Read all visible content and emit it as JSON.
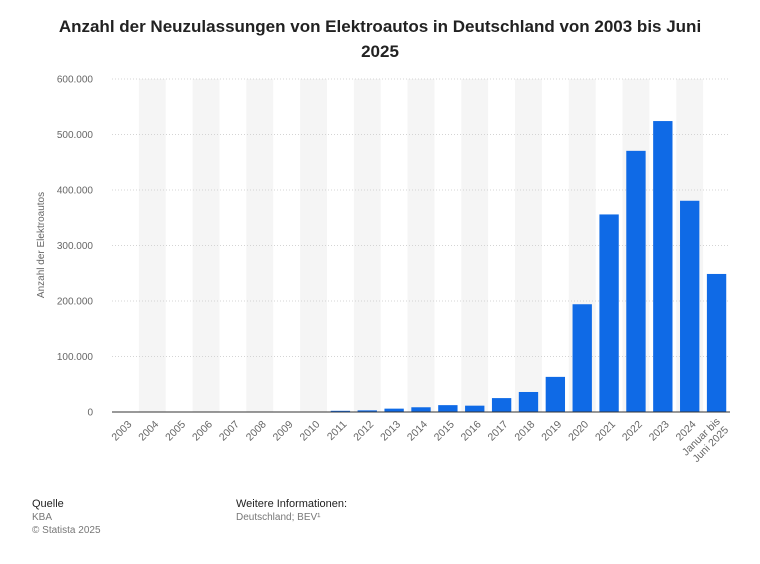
{
  "chart_data": {
    "type": "bar",
    "title": "Anzahl der Neuzulassungen von Elektroautos in Deutschland von 2003 bis Juni 2025",
    "ylabel": "Anzahl der Elektroautos",
    "xlabel": "",
    "categories": [
      "2003",
      "2004",
      "2005",
      "2006",
      "2007",
      "2008",
      "2009",
      "2010",
      "2011",
      "2012",
      "2013",
      "2014",
      "2015",
      "2016",
      "2017",
      "2018",
      "2019",
      "2020",
      "2021",
      "2022",
      "2023",
      "2024",
      "Januar bis Juni 2025"
    ],
    "values": [
      0,
      0,
      0,
      0,
      0,
      0,
      0,
      541,
      2154,
      2956,
      6051,
      8522,
      12363,
      11410,
      25056,
      36062,
      63281,
      194163,
      355961,
      470559,
      524219,
      380609,
      248726
    ],
    "ylim": [
      0,
      600000
    ],
    "yticks": [
      0,
      100000,
      200000,
      300000,
      400000,
      500000,
      600000
    ],
    "ytick_labels": [
      "0",
      "100.000",
      "200.000",
      "300.000",
      "400.000",
      "500.000",
      "600.000"
    ],
    "grid": true,
    "legend": "none",
    "bar_color": "#0f6ae6",
    "band_color": "#f5f5f5"
  },
  "footer": {
    "source_heading": "Quelle",
    "source_lines": [
      "KBA",
      "© Statista 2025"
    ],
    "info_heading": "Weitere Informationen:",
    "info_text": "Deutschland; BEV¹"
  }
}
